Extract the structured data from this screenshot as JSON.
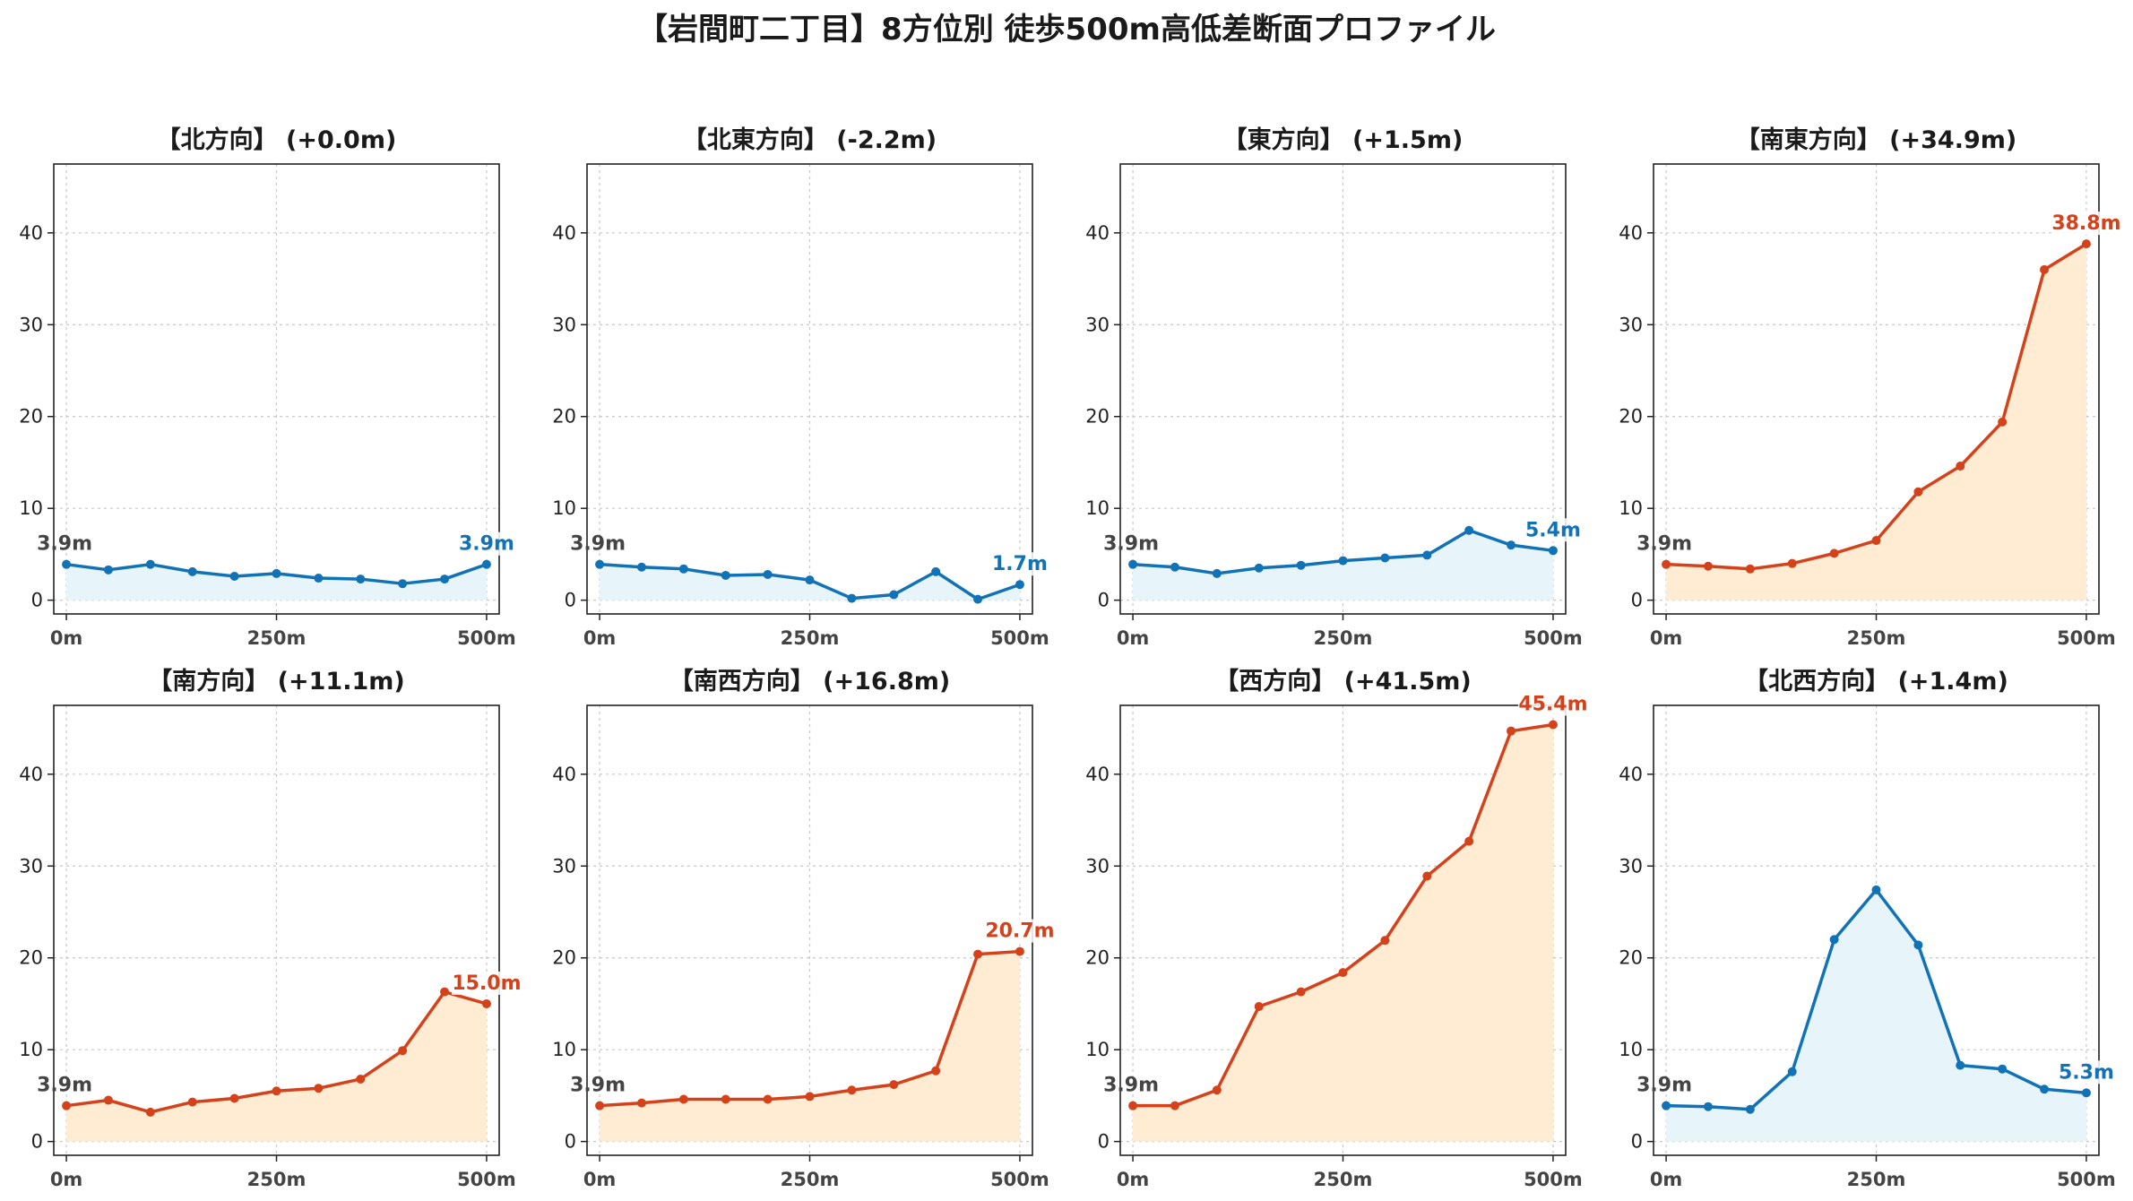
{
  "title": "【岩間町二丁目】8方位別 徒歩500m高低差断面プロファイル",
  "colors": {
    "uphill_line": "#d4421b",
    "uphill_fill": "#ffecd2",
    "flat_line": "#1272b6",
    "flat_fill": "#e7f5fb"
  },
  "chart_data": [
    {
      "type": "area",
      "direction": "北方向",
      "title": "【北方向】 (+0.0m)",
      "color": "flat",
      "x": [
        0,
        50,
        100,
        150,
        200,
        250,
        300,
        350,
        400,
        450,
        500
      ],
      "values": [
        3.9,
        3.3,
        3.9,
        3.1,
        2.6,
        2.9,
        2.4,
        2.3,
        1.8,
        2.3,
        3.9
      ],
      "start_label": "3.9m",
      "end_label": "3.9m",
      "xticks": [
        "0m",
        "250m",
        "500m"
      ],
      "yticks": [
        0,
        10,
        20,
        30,
        40
      ],
      "ylim": [
        -1.5,
        47.5
      ],
      "grid": true
    },
    {
      "type": "area",
      "direction": "北東方向",
      "title": "【北東方向】 (-2.2m)",
      "color": "flat",
      "x": [
        0,
        50,
        100,
        150,
        200,
        250,
        300,
        350,
        400,
        450,
        500
      ],
      "values": [
        3.9,
        3.6,
        3.4,
        2.7,
        2.8,
        2.2,
        0.2,
        0.6,
        3.1,
        0.1,
        1.7
      ],
      "start_label": "3.9m",
      "end_label": "1.7m",
      "xticks": [
        "0m",
        "250m",
        "500m"
      ],
      "yticks": [
        0,
        10,
        20,
        30,
        40
      ],
      "ylim": [
        -1.5,
        47.5
      ],
      "grid": true
    },
    {
      "type": "area",
      "direction": "東方向",
      "title": "【東方向】 (+1.5m)",
      "color": "flat",
      "x": [
        0,
        50,
        100,
        150,
        200,
        250,
        300,
        350,
        400,
        450,
        500
      ],
      "values": [
        3.9,
        3.6,
        2.9,
        3.5,
        3.8,
        4.3,
        4.6,
        4.9,
        7.6,
        6.0,
        5.4
      ],
      "start_label": "3.9m",
      "end_label": "5.4m",
      "xticks": [
        "0m",
        "250m",
        "500m"
      ],
      "yticks": [
        0,
        10,
        20,
        30,
        40
      ],
      "ylim": [
        -1.5,
        47.5
      ],
      "grid": true
    },
    {
      "type": "area",
      "direction": "南東方向",
      "title": "【南東方向】 (+34.9m)",
      "color": "uphill",
      "x": [
        0,
        50,
        100,
        150,
        200,
        250,
        300,
        350,
        400,
        450,
        500
      ],
      "values": [
        3.9,
        3.7,
        3.4,
        4.0,
        5.1,
        6.5,
        11.8,
        14.6,
        19.4,
        36.0,
        38.8
      ],
      "start_label": "3.9m",
      "end_label": "38.8m",
      "xticks": [
        "0m",
        "250m",
        "500m"
      ],
      "yticks": [
        0,
        10,
        20,
        30,
        40
      ],
      "ylim": [
        -1.5,
        47.5
      ],
      "grid": true
    },
    {
      "type": "area",
      "direction": "南方向",
      "title": "【南方向】 (+11.1m)",
      "color": "uphill",
      "x": [
        0,
        50,
        100,
        150,
        200,
        250,
        300,
        350,
        400,
        450,
        500
      ],
      "values": [
        3.9,
        4.5,
        3.2,
        4.3,
        4.7,
        5.5,
        5.8,
        6.8,
        9.9,
        16.3,
        15.0
      ],
      "start_label": "3.9m",
      "end_label": "15.0m",
      "xticks": [
        "0m",
        "250m",
        "500m"
      ],
      "yticks": [
        0,
        10,
        20,
        30,
        40
      ],
      "ylim": [
        -1.5,
        47.5
      ],
      "grid": true
    },
    {
      "type": "area",
      "direction": "南西方向",
      "title": "【南西方向】 (+16.8m)",
      "color": "uphill",
      "x": [
        0,
        50,
        100,
        150,
        200,
        250,
        300,
        350,
        400,
        450,
        500
      ],
      "values": [
        3.9,
        4.2,
        4.6,
        4.6,
        4.6,
        4.9,
        5.6,
        6.2,
        7.7,
        20.4,
        20.7
      ],
      "start_label": "3.9m",
      "end_label": "20.7m",
      "xticks": [
        "0m",
        "250m",
        "500m"
      ],
      "yticks": [
        0,
        10,
        20,
        30,
        40
      ],
      "ylim": [
        -1.5,
        47.5
      ],
      "grid": true
    },
    {
      "type": "area",
      "direction": "西方向",
      "title": "【西方向】 (+41.5m)",
      "color": "uphill",
      "x": [
        0,
        50,
        100,
        150,
        200,
        250,
        300,
        350,
        400,
        450,
        500
      ],
      "values": [
        3.9,
        3.9,
        5.6,
        14.7,
        16.3,
        18.4,
        21.9,
        28.9,
        32.7,
        44.7,
        45.4
      ],
      "start_label": "3.9m",
      "end_label": "45.4m",
      "xticks": [
        "0m",
        "250m",
        "500m"
      ],
      "yticks": [
        0,
        10,
        20,
        30,
        40
      ],
      "ylim": [
        -1.5,
        47.5
      ],
      "grid": true
    },
    {
      "type": "area",
      "direction": "北西方向",
      "title": "【北西方向】 (+1.4m)",
      "color": "flat",
      "x": [
        0,
        50,
        100,
        150,
        200,
        250,
        300,
        350,
        400,
        450,
        500
      ],
      "values": [
        3.9,
        3.8,
        3.5,
        7.6,
        22.0,
        27.4,
        21.4,
        8.3,
        7.9,
        5.7,
        5.3
      ],
      "start_label": "3.9m",
      "end_label": "5.3m",
      "xticks": [
        "0m",
        "250m",
        "500m"
      ],
      "yticks": [
        0,
        10,
        20,
        30,
        40
      ],
      "ylim": [
        -1.5,
        47.5
      ],
      "grid": true
    }
  ]
}
